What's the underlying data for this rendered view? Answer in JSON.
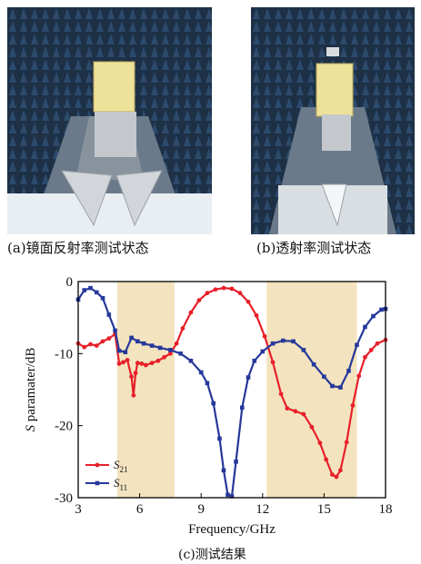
{
  "captions": {
    "a": "(a)镜面反射率测试状态",
    "b": "(b)透射率测试状态",
    "c": "(c)测试结果"
  },
  "colors": {
    "s21": "#e8202a",
    "s11": "#26389a",
    "band": "#f3e4bf"
  },
  "chart_data": {
    "type": "line",
    "xlabel": "Frequency/GHz",
    "ylabel_italic": "S",
    "ylabel_rest": " paramater/dB",
    "xlim": [
      3,
      18
    ],
    "ylim": [
      -30,
      0
    ],
    "xticks": [
      3,
      6,
      9,
      12,
      15,
      18
    ],
    "yticks": [
      0,
      -10,
      -20,
      -30
    ],
    "shaded_bands": [
      [
        4.9,
        7.7
      ],
      [
        12.2,
        16.6
      ]
    ],
    "legend_position": "bottom-left",
    "series": [
      {
        "name": "S",
        "name_sub": "21",
        "color": "#e8202a",
        "marker": "circle",
        "x": [
          3.0,
          3.3,
          3.6,
          3.9,
          4.2,
          4.5,
          4.8,
          5.0,
          5.2,
          5.4,
          5.6,
          5.7,
          5.8,
          5.9,
          6.1,
          6.3,
          6.6,
          6.9,
          7.2,
          7.5,
          7.8,
          8.1,
          8.5,
          8.9,
          9.3,
          9.7,
          10.1,
          10.5,
          10.9,
          11.3,
          11.7,
          12.1,
          12.5,
          12.9,
          13.2,
          13.6,
          14.0,
          14.4,
          14.8,
          15.1,
          15.4,
          15.6,
          15.8,
          16.1,
          16.4,
          16.7,
          17.0,
          17.3,
          17.6,
          18.0
        ],
        "y": [
          -8.6,
          -9.1,
          -8.7,
          -8.9,
          -8.3,
          -7.9,
          -7.3,
          -11.4,
          -11.2,
          -10.9,
          -13.2,
          -15.8,
          -12.7,
          -11.3,
          -11.4,
          -11.6,
          -11.3,
          -11.0,
          -10.5,
          -10.0,
          -8.6,
          -6.5,
          -4.3,
          -2.6,
          -1.6,
          -1.1,
          -0.9,
          -1.0,
          -1.6,
          -2.8,
          -4.7,
          -7.6,
          -11.2,
          -15.6,
          -17.6,
          -18.0,
          -18.4,
          -20.2,
          -22.4,
          -24.7,
          -26.8,
          -27.1,
          -26.2,
          -22.3,
          -17.2,
          -13.1,
          -10.5,
          -9.5,
          -8.6,
          -8.1
        ]
      },
      {
        "name": "S",
        "name_sub": "11",
        "color": "#26389a",
        "marker": "square",
        "x": [
          3.0,
          3.3,
          3.6,
          3.9,
          4.2,
          4.5,
          4.8,
          5.0,
          5.3,
          5.6,
          5.9,
          6.2,
          6.6,
          7.0,
          7.5,
          8.0,
          8.5,
          9.0,
          9.3,
          9.6,
          9.9,
          10.1,
          10.3,
          10.5,
          10.7,
          11.0,
          11.3,
          11.6,
          12.0,
          12.5,
          13.0,
          13.5,
          14.0,
          14.5,
          15.0,
          15.4,
          15.8,
          16.2,
          16.6,
          17.0,
          17.4,
          17.8,
          18.0
        ],
        "y": [
          -2.5,
          -1.2,
          -0.9,
          -1.5,
          -2.3,
          -4.6,
          -6.8,
          -9.6,
          -9.8,
          -7.8,
          -8.3,
          -8.6,
          -8.9,
          -9.2,
          -9.5,
          -10.0,
          -11.0,
          -12.6,
          -14.1,
          -16.9,
          -21.8,
          -26.2,
          -29.6,
          -29.8,
          -25.0,
          -17.5,
          -13.3,
          -11.0,
          -9.7,
          -8.6,
          -8.2,
          -8.3,
          -9.5,
          -11.5,
          -13.2,
          -14.5,
          -14.7,
          -12.4,
          -8.8,
          -6.3,
          -4.8,
          -3.9,
          -3.8
        ]
      }
    ]
  }
}
